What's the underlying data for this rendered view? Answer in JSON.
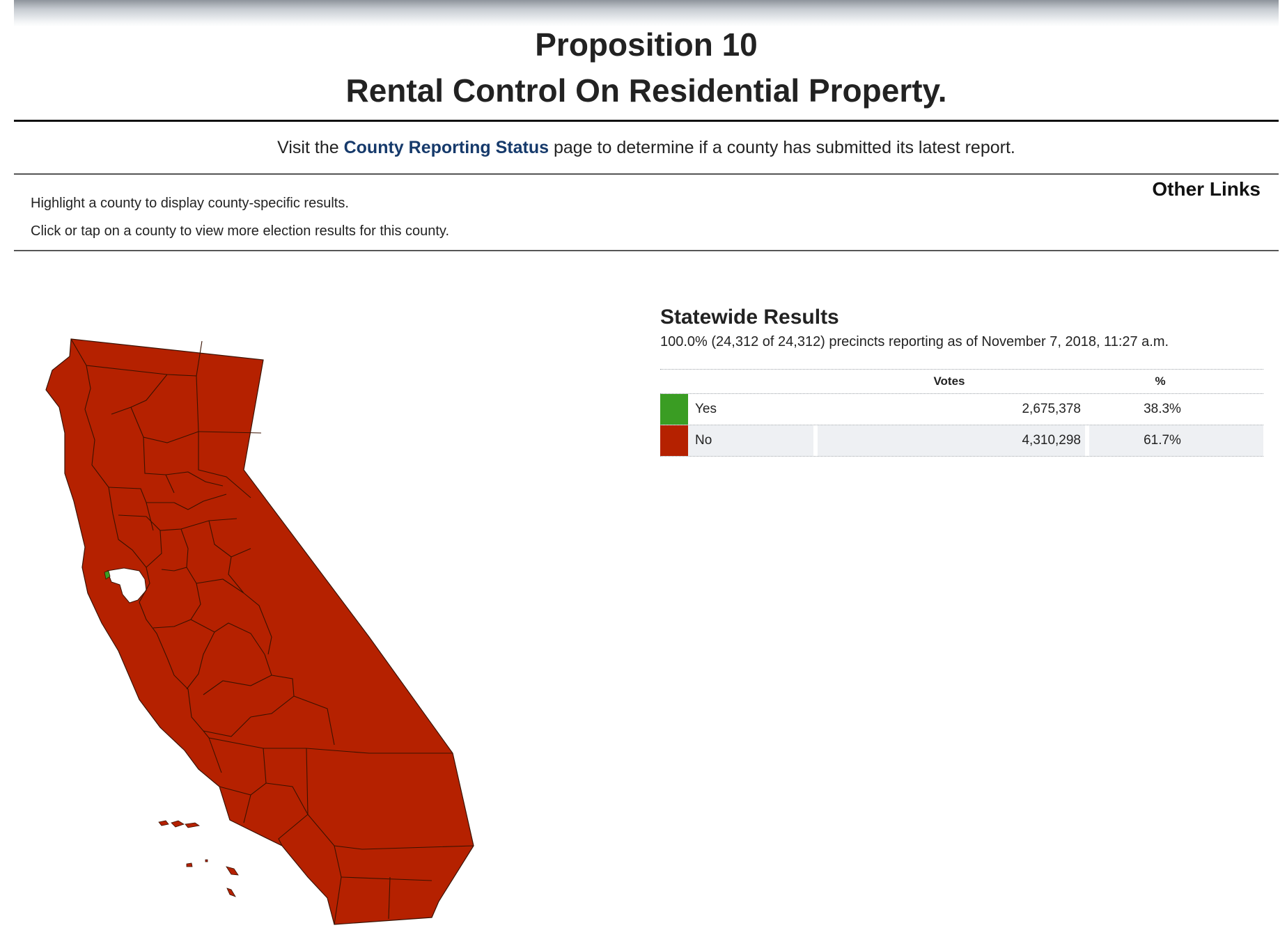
{
  "header": {
    "title_line1": "Proposition 10",
    "title_line2": "Rental Control On Residential Property."
  },
  "status": {
    "prefix": "Visit the",
    "link_label": "County Reporting Status",
    "suffix": "page to determine if a county has submitted its latest report."
  },
  "instructions": {
    "line1": "Highlight a county to display county-specific results.",
    "line2": "Click or tap on a county to view more election results for this county."
  },
  "other_links": {
    "label": "Other Links"
  },
  "map": {
    "county_fill_no": "#b52100",
    "county_fill_yes": "#3a9d23",
    "border_color": "#3a1200"
  },
  "results": {
    "title": "Statewide Results",
    "subtitle": "100.0% (24,312 of 24,312) precincts reporting as of November 7, 2018, 11:27 a.m.",
    "columns": {
      "votes": "Votes",
      "pct": "%"
    },
    "rows": [
      {
        "name": "Yes",
        "votes": "2,675,378",
        "pct": "38.3%",
        "color": "#3a9d23"
      },
      {
        "name": "No",
        "votes": "4,310,298",
        "pct": "61.7%",
        "color": "#b52100"
      }
    ]
  }
}
